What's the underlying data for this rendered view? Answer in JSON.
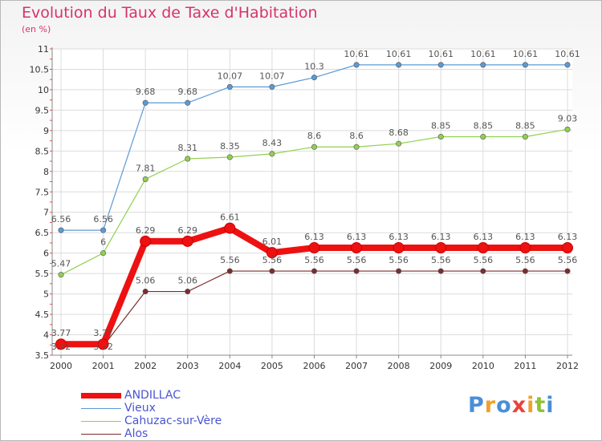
{
  "header": {
    "title": "Evolution du Taux de Taxe d'Habitation",
    "subtitle": "(en %)"
  },
  "logo": {
    "letters": [
      "P",
      "r",
      "o",
      "x",
      "i",
      "t",
      "i"
    ],
    "colors": [
      "#4a8ed8",
      "#f2a02d",
      "#4a8ed8",
      "#e8433a",
      "#f2a02d",
      "#8fc23a",
      "#4a8ed8"
    ]
  },
  "chart_data": {
    "type": "line",
    "title": "Evolution du Taux de Taxe d'Habitation",
    "subtitle": "(en %)",
    "xlabel": "",
    "ylabel": "",
    "x": [
      "2000",
      "2001",
      "2002",
      "2003",
      "2004",
      "2005",
      "2006",
      "2007",
      "2008",
      "2009",
      "2010",
      "2011",
      "2012"
    ],
    "ylim": [
      3.5,
      11
    ],
    "yticks": [
      3.5,
      4,
      4.5,
      5,
      5.5,
      6,
      6.5,
      7,
      7.5,
      8,
      8.5,
      9,
      9.5,
      10,
      10.5,
      11
    ],
    "yticklabels": [
      "3.5",
      "4",
      "4.5",
      "5",
      "5.5",
      "6",
      "6.5",
      "7",
      "7.5",
      "8",
      "8.5",
      "9",
      "9.5",
      "10",
      "10.5",
      "11"
    ],
    "grid": true,
    "legend_position": "bottom-left",
    "series": [
      {
        "name": "ANDILLAC",
        "color": "#ee1111",
        "values": [
          3.77,
          3.77,
          6.29,
          6.29,
          6.61,
          6.01,
          6.13,
          6.13,
          6.13,
          6.13,
          6.13,
          6.13,
          6.13
        ],
        "labels": [
          "3.77",
          "3.77",
          "6.29",
          "6.29",
          "6.61",
          "6.01",
          "6.13",
          "6.13",
          "6.13",
          "6.13",
          "6.13",
          "6.13",
          "6.13"
        ]
      },
      {
        "name": "Vieux",
        "color": "#5b9bd5",
        "values": [
          6.56,
          6.56,
          9.68,
          9.68,
          10.07,
          10.07,
          10.3,
          10.61,
          10.61,
          10.61,
          10.61,
          10.61,
          10.61
        ],
        "labels": [
          "6.56",
          "6.56",
          "9.68",
          "9.68",
          "10.07",
          "10.07",
          "10.3",
          "10.61",
          "10.61",
          "10.61",
          "10.61",
          "10.61",
          "10.61"
        ]
      },
      {
        "name": "Cahuzac-sur-Vère",
        "color": "#92d050",
        "values": [
          5.47,
          6,
          7.81,
          8.31,
          8.35,
          8.43,
          8.6,
          8.6,
          8.68,
          8.85,
          8.85,
          8.85,
          9.03
        ],
        "labels": [
          "5.47",
          "6",
          "7.81",
          "8.31",
          "8.35",
          "8.43",
          "8.6",
          "8.6",
          "8.68",
          "8.85",
          "8.85",
          "8.85",
          "9.03"
        ]
      },
      {
        "name": "Alos",
        "color": "#7b2c2c",
        "values": [
          3.72,
          3.72,
          5.06,
          5.06,
          5.56,
          5.56,
          5.56,
          5.56,
          5.56,
          5.56,
          5.56,
          5.56,
          5.56
        ],
        "labels": [
          "3.72",
          "3.72",
          "5.06",
          "5.06",
          "5.56",
          "5.56",
          "5.56",
          "5.56",
          "5.56",
          "5.56",
          "5.56",
          "5.56",
          "5.56"
        ]
      }
    ]
  }
}
